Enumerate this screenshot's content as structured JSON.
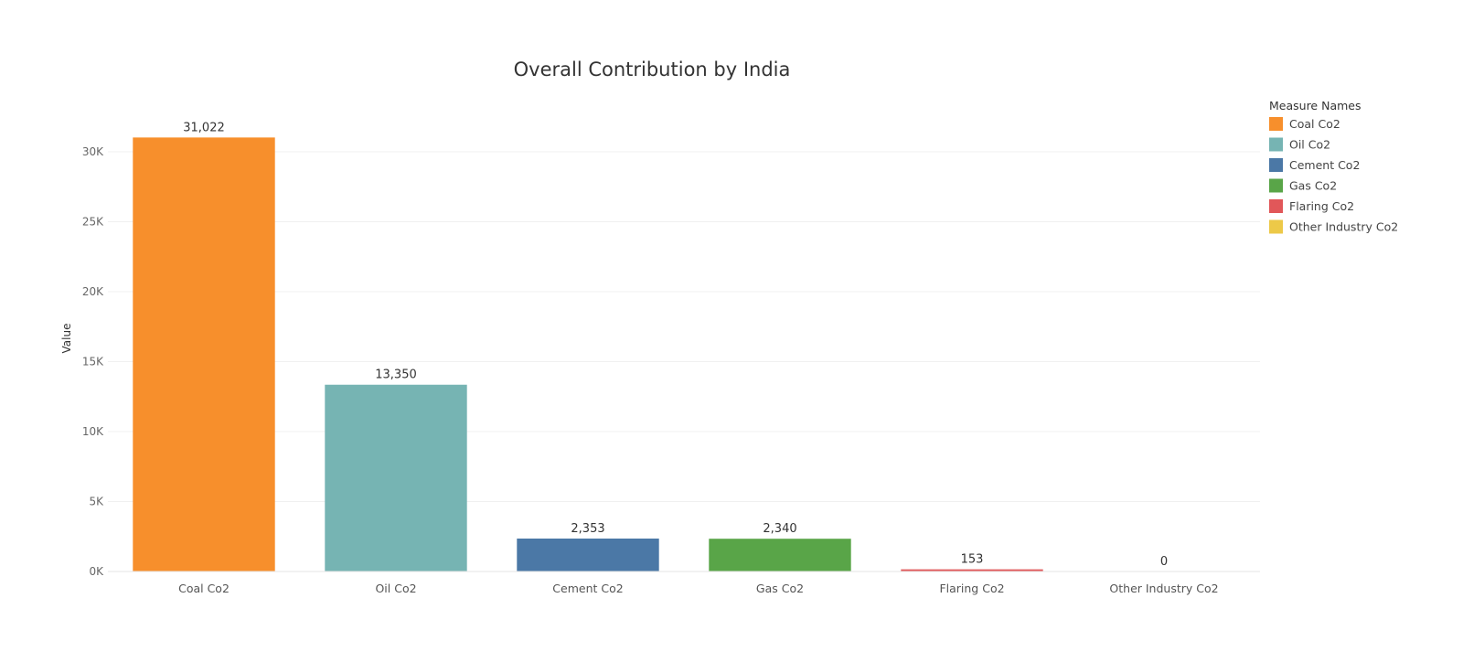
{
  "chart_data": {
    "type": "bar",
    "title": "Overall Contribution by India",
    "xlabel": "",
    "ylabel": "Value",
    "ylim": [
      0,
      32500
    ],
    "y_ticks": [
      0,
      5000,
      10000,
      15000,
      20000,
      25000,
      30000
    ],
    "y_tick_labels": [
      "0K",
      "5K",
      "10K",
      "15K",
      "20K",
      "25K",
      "30K"
    ],
    "categories": [
      "Coal Co2",
      "Oil Co2",
      "Cement Co2",
      "Gas Co2",
      "Flaring Co2",
      "Other Industry Co2"
    ],
    "values": [
      31022,
      13350,
      2353,
      2340,
      153,
      0
    ],
    "value_labels": [
      "31,022",
      "13,350",
      "2,353",
      "2,340",
      "153",
      "0"
    ],
    "colors": [
      "#f78f2c",
      "#76b4b3",
      "#4b78a6",
      "#59a548",
      "#e15759",
      "#edc948"
    ],
    "grid": true,
    "legend": {
      "placement": "top-right",
      "title": "Measure Names",
      "entries": [
        "Coal Co2",
        "Oil Co2",
        "Cement Co2",
        "Gas Co2",
        "Flaring Co2",
        "Other Industry Co2"
      ]
    }
  }
}
